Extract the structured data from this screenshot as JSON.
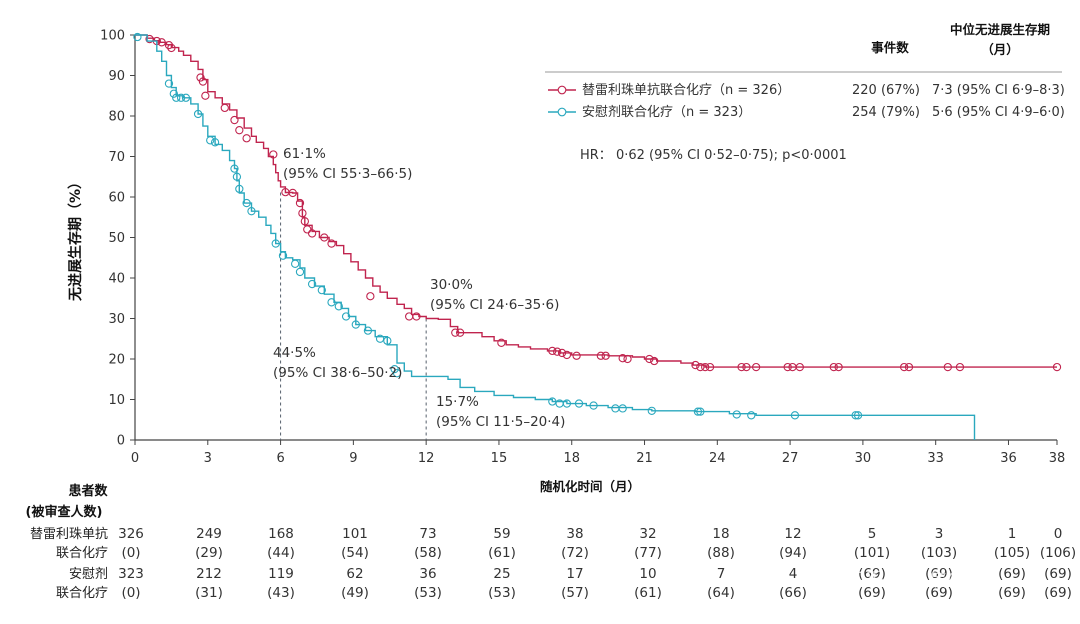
{
  "chart_data": {
    "type": "line",
    "subtype": "kaplan-meier",
    "ylabel": "无进展生存期（%）",
    "xlabel": "随机化时间（月）",
    "x_ticks": [
      "0",
      "3",
      "6",
      "9",
      "12",
      "15",
      "18",
      "21",
      "24",
      "27",
      "30",
      "33",
      "36",
      "38"
    ],
    "y_ticks": [
      "0",
      "10",
      "20",
      "30",
      "40",
      "50",
      "60",
      "70",
      "80",
      "90",
      "100"
    ],
    "xlim": [
      0,
      38
    ],
    "ylim": [
      0,
      100
    ],
    "grid": false,
    "legend_placement": "top-right",
    "header": {
      "events": "事件数",
      "median_line1": "中位无进展生存期",
      "median_line2": "（月）"
    },
    "series": [
      {
        "name": "替雷利珠单抗联合化疗（n = 326）",
        "color": "#c0244e",
        "events": "220 (67%)",
        "median": "7·3 (95% CI 6·9–8·3)",
        "points": [
          [
            0,
            100
          ],
          [
            0.5,
            99.2
          ],
          [
            0.8,
            98.6
          ],
          [
            1,
            98.2
          ],
          [
            1.3,
            97.6
          ],
          [
            1.5,
            96.9
          ],
          [
            1.8,
            96
          ],
          [
            2,
            95
          ],
          [
            2.3,
            93.5
          ],
          [
            2.6,
            91.5
          ],
          [
            2.8,
            89
          ],
          [
            3,
            86
          ],
          [
            3.3,
            84.5
          ],
          [
            3.6,
            83
          ],
          [
            3.9,
            81.5
          ],
          [
            4.2,
            79.5
          ],
          [
            4.5,
            77
          ],
          [
            4.8,
            75
          ],
          [
            5,
            73.5
          ],
          [
            5.3,
            72
          ],
          [
            5.5,
            70
          ],
          [
            5.7,
            68
          ],
          [
            5.8,
            66
          ],
          [
            5.9,
            64
          ],
          [
            6,
            62.5
          ],
          [
            6.2,
            61.1
          ],
          [
            6.5,
            61
          ],
          [
            6.7,
            59
          ],
          [
            6.9,
            55
          ],
          [
            7,
            53
          ],
          [
            7.3,
            51.5
          ],
          [
            7.6,
            50
          ],
          [
            8,
            49
          ],
          [
            8.3,
            48
          ],
          [
            8.6,
            46
          ],
          [
            8.9,
            44
          ],
          [
            9.2,
            42
          ],
          [
            9.5,
            40
          ],
          [
            9.8,
            38
          ],
          [
            10.1,
            36.5
          ],
          [
            10.4,
            35
          ],
          [
            10.8,
            33.5
          ],
          [
            11.1,
            32.5
          ],
          [
            11.4,
            31
          ],
          [
            11.7,
            30.5
          ],
          [
            12,
            30
          ],
          [
            12.5,
            29.8
          ],
          [
            13,
            28
          ],
          [
            13.3,
            26.5
          ],
          [
            13.8,
            26.5
          ],
          [
            14.3,
            25.5
          ],
          [
            14.8,
            24.5
          ],
          [
            15.3,
            23.5
          ],
          [
            15.8,
            23
          ],
          [
            16.3,
            22.5
          ],
          [
            17,
            22
          ],
          [
            17.5,
            21.5
          ],
          [
            18,
            21
          ],
          [
            19,
            21
          ],
          [
            19.5,
            20.8
          ],
          [
            20.5,
            20.5
          ],
          [
            21,
            20
          ],
          [
            21.5,
            19.5
          ],
          [
            22.5,
            19
          ],
          [
            23,
            18.5
          ],
          [
            23.5,
            18
          ],
          [
            38,
            18
          ]
        ],
        "censor": [
          [
            0.6,
            99
          ],
          [
            0.9,
            98.5
          ],
          [
            1.1,
            98.2
          ],
          [
            1.4,
            97.5
          ],
          [
            1.5,
            96.8
          ],
          [
            2.7,
            89.5
          ],
          [
            2.8,
            88.5
          ],
          [
            2.9,
            85
          ],
          [
            3.7,
            82
          ],
          [
            4.1,
            79
          ],
          [
            4.3,
            76.5
          ],
          [
            4.6,
            74.5
          ],
          [
            5.7,
            70.5
          ],
          [
            6.2,
            61.2
          ],
          [
            6.5,
            61
          ],
          [
            6.8,
            58.5
          ],
          [
            6.9,
            56
          ],
          [
            7,
            54
          ],
          [
            7.1,
            52
          ],
          [
            7.3,
            51
          ],
          [
            7.8,
            50
          ],
          [
            8.1,
            48.5
          ],
          [
            9.7,
            35.5
          ],
          [
            11.3,
            30.5
          ],
          [
            11.6,
            30.5
          ],
          [
            13.2,
            26.5
          ],
          [
            13.4,
            26.5
          ],
          [
            15.1,
            24
          ],
          [
            17.2,
            22
          ],
          [
            17.4,
            21.8
          ],
          [
            17.6,
            21.5
          ],
          [
            17.8,
            21
          ],
          [
            18.2,
            20.8
          ],
          [
            19.2,
            20.8
          ],
          [
            19.4,
            20.8
          ],
          [
            20.1,
            20.2
          ],
          [
            20.3,
            20
          ],
          [
            21.2,
            20
          ],
          [
            21.4,
            19.5
          ],
          [
            23.1,
            18.5
          ],
          [
            23.3,
            18
          ],
          [
            23.5,
            18
          ],
          [
            23.7,
            18
          ],
          [
            25,
            18
          ],
          [
            25.2,
            18
          ],
          [
            25.6,
            18
          ],
          [
            26.9,
            18
          ],
          [
            27.1,
            18
          ],
          [
            27.4,
            18
          ],
          [
            28.8,
            18
          ],
          [
            29,
            18
          ],
          [
            31.7,
            18
          ],
          [
            31.9,
            18
          ],
          [
            33.5,
            18
          ],
          [
            34,
            18
          ],
          [
            38,
            18
          ]
        ]
      },
      {
        "name": "安慰剂联合化疗（n = 323）",
        "color": "#2aa8be",
        "events": "254 (79%)",
        "median": "5·6 (95% CI 4·9–6·0)",
        "points": [
          [
            0,
            100
          ],
          [
            0.5,
            98.5
          ],
          [
            0.9,
            96
          ],
          [
            1.1,
            93.5
          ],
          [
            1.3,
            90
          ],
          [
            1.5,
            87
          ],
          [
            1.7,
            85
          ],
          [
            2,
            84.5
          ],
          [
            2.3,
            83
          ],
          [
            2.6,
            80.5
          ],
          [
            2.8,
            77.5
          ],
          [
            3,
            75
          ],
          [
            3.3,
            73
          ],
          [
            3.6,
            71.5
          ],
          [
            3.9,
            69
          ],
          [
            4.1,
            67
          ],
          [
            4.2,
            64
          ],
          [
            4.3,
            61
          ],
          [
            4.5,
            58.5
          ],
          [
            4.8,
            56.5
          ],
          [
            5.1,
            55
          ],
          [
            5.4,
            53
          ],
          [
            5.6,
            51
          ],
          [
            5.8,
            48.5
          ],
          [
            6,
            46.5
          ],
          [
            6.2,
            45
          ],
          [
            6.5,
            44.5
          ],
          [
            6.8,
            42.5
          ],
          [
            7,
            40
          ],
          [
            7.4,
            38
          ],
          [
            7.8,
            36
          ],
          [
            8.2,
            34
          ],
          [
            8.5,
            32.5
          ],
          [
            8.8,
            30.5
          ],
          [
            9.1,
            28.5
          ],
          [
            9.5,
            27
          ],
          [
            9.9,
            25.5
          ],
          [
            10.4,
            23.5
          ],
          [
            10.8,
            19
          ],
          [
            11.1,
            17
          ],
          [
            11.4,
            15.7
          ],
          [
            12,
            15.7
          ],
          [
            12.9,
            15
          ],
          [
            13.4,
            13
          ],
          [
            14,
            12
          ],
          [
            14.8,
            11
          ],
          [
            15.6,
            10.5
          ],
          [
            16.5,
            10
          ],
          [
            17.2,
            9.5
          ],
          [
            17.8,
            9
          ],
          [
            18.6,
            8.5
          ],
          [
            19.5,
            8
          ],
          [
            20.5,
            7.5
          ],
          [
            21.3,
            7.2
          ],
          [
            23.1,
            7
          ],
          [
            24.5,
            6.5
          ],
          [
            25.6,
            6.1
          ],
          [
            34.6,
            6.1
          ],
          [
            34.6,
            0
          ]
        ],
        "censor": [
          [
            0.1,
            99.5
          ],
          [
            1.4,
            88
          ],
          [
            1.6,
            85.5
          ],
          [
            1.7,
            84.5
          ],
          [
            1.9,
            84.5
          ],
          [
            2.1,
            84.5
          ],
          [
            2.6,
            80.5
          ],
          [
            3.1,
            74
          ],
          [
            3.3,
            73.5
          ],
          [
            4.1,
            67
          ],
          [
            4.2,
            65
          ],
          [
            4.3,
            62
          ],
          [
            4.6,
            58.5
          ],
          [
            4.8,
            56.5
          ],
          [
            5.8,
            48.5
          ],
          [
            6.1,
            45.5
          ],
          [
            6.6,
            43.5
          ],
          [
            6.8,
            41.5
          ],
          [
            7.3,
            38.5
          ],
          [
            7.7,
            37
          ],
          [
            8.1,
            34
          ],
          [
            8.4,
            33
          ],
          [
            8.7,
            30.5
          ],
          [
            9.1,
            28.5
          ],
          [
            9.6,
            27
          ],
          [
            10.1,
            25
          ],
          [
            10.4,
            24.5
          ],
          [
            10.7,
            17.5
          ],
          [
            10.8,
            16.5
          ],
          [
            17.2,
            9.5
          ],
          [
            17.5,
            9
          ],
          [
            17.8,
            9
          ],
          [
            18.3,
            9
          ],
          [
            18.9,
            8.5
          ],
          [
            19.8,
            7.8
          ],
          [
            20.1,
            7.8
          ],
          [
            21.3,
            7.2
          ],
          [
            23.2,
            7
          ],
          [
            23.3,
            7
          ],
          [
            24.8,
            6.3
          ],
          [
            25.4,
            6.1
          ],
          [
            27.2,
            6.1
          ],
          [
            29.7,
            6.1
          ],
          [
            29.8,
            6.1
          ]
        ]
      }
    ],
    "annotations": [
      {
        "x": 6,
        "y": 61.1,
        "line1": "61·1%",
        "line2": "(95% CI 55·3–66·5)"
      },
      {
        "x": 12,
        "y": 30.0,
        "line1": "30·0%",
        "line2": "(95% CI 24·6–35·6)"
      },
      {
        "x": 6,
        "y": 44.5,
        "line1": "44·5%",
        "line2": "(95% CI 38·6–50·2)"
      },
      {
        "x": 12,
        "y": 15.7,
        "line1": "15·7%",
        "line2": "(95% CI 11·5–20·4)"
      }
    ],
    "hr_text": "HR：  0·62 (95% CI 0·52–0·75); p<0·0001"
  },
  "risk_table": {
    "title_line1": "患者数",
    "title_line2": "(被审查人数)",
    "rows": [
      {
        "label": "替雷利珠单抗",
        "values": [
          "326",
          "249",
          "168",
          "101",
          "73",
          "59",
          "38",
          "32",
          "18",
          "12",
          "5",
          "3",
          "1",
          "0"
        ]
      },
      {
        "label": "联合化疗",
        "values": [
          "(0)",
          "(29)",
          "(44)",
          "(54)",
          "(58)",
          "(61)",
          "(72)",
          "(77)",
          "(88)",
          "(94)",
          "(101)",
          "(103)",
          "(105)",
          "(106)"
        ]
      },
      {
        "label": "安慰剂",
        "values": [
          "323",
          "212",
          "119",
          "62",
          "36",
          "25",
          "17",
          "10",
          "7",
          "4",
          "(69)",
          "(69)",
          "(69)",
          "(69)"
        ]
      },
      {
        "label": "联合化疗",
        "values": [
          "(0)",
          "(31)",
          "(43)",
          "(49)",
          "(53)",
          "(53)",
          "(57)",
          "(61)",
          "(64)",
          "(66)",
          "(69)",
          "(69)",
          "(69)",
          "(69)"
        ]
      }
    ]
  },
  "watermark": "知乎 @聚焦CA"
}
